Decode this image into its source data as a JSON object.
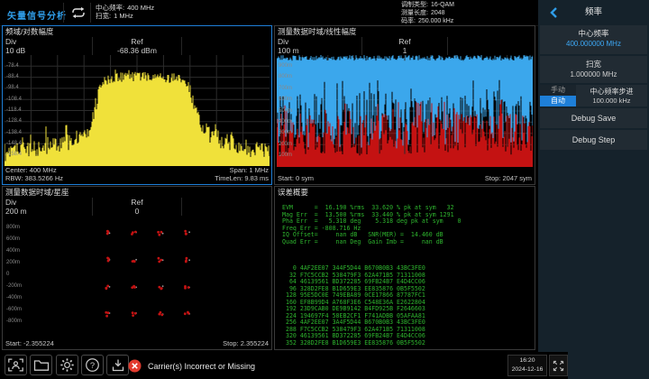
{
  "colors": {
    "accent_blue": "#2f9de8",
    "active_panel_border": "#1e7fd8",
    "trace_yellow": "#f0e13a",
    "trace_blue": "#3ba7ec",
    "trace_red": "#c41212",
    "text_green": "#2eb52e",
    "alert_red": "#e23b2e"
  },
  "top_bar": {
    "app_title": "矢量信号分析",
    "sweep_icon": "repeat-sweep-icon",
    "center_freq_label": "中心频率:",
    "center_freq_value": "400 MHz",
    "span_label": "扫宽:",
    "span_value": "1 MHz",
    "mod_type_label": "调制类型:",
    "mod_type_value": "16-QAM",
    "meas_len_label": "测量长度:",
    "meas_len_value": "2048",
    "symbol_rate_label": "码率:",
    "symbol_rate_value": "250.000 kHz"
  },
  "panels": {
    "spectrum": {
      "title": "频域/对数幅度",
      "div_label": "Div",
      "div_value": "10 dB",
      "ref_label": "Ref",
      "ref_value": "-68.36 dBm",
      "y_ticks": [
        "-78.4",
        "-88.4",
        "-98.4",
        "-108.4",
        "-118.4",
        "-128.4",
        "-138.4",
        "-148.4",
        "-158.4"
      ],
      "center": "Center: 400 MHz",
      "span": "Span: 1 MHz",
      "rbw": "RBW: 383.5266 Hz",
      "timelen": "TimeLen: 9.83 ms"
    },
    "magnitude": {
      "title": "测量数据时域/线性幅度",
      "div_label": "Div",
      "div_value": "100 m",
      "ref_label": "Ref",
      "ref_value": "1",
      "y_ticks": [
        "900m",
        "800m",
        "700m",
        "600m",
        "500m",
        "400m",
        "300m",
        "200m",
        "100m"
      ],
      "start": "Start: 0 sym",
      "stop": "Stop: 2047 sym"
    },
    "constellation": {
      "title": "测量数据时域/星座",
      "div_label": "Div",
      "div_value": "200 m",
      "ref_label": "Ref",
      "ref_value": "0",
      "y_ticks": [
        "800m",
        "600m",
        "400m",
        "200m",
        "0",
        "-200m",
        "-400m",
        "-600m",
        "-800m"
      ],
      "start": "Start: -2.355224",
      "stop": "Stop: 2.355224"
    },
    "error_summary": {
      "title": "误差概要",
      "metrics": [
        "EVM      =  16.190 %rms  33.620 % pk at sym   32",
        "Mag Err  =  13.500 %rms  33.440 % pk at sym 1291",
        "Pha Err  =   5.318 deg    5.318 deg pk at sym    0",
        "Freq Err = -808.716 Hz",
        "IQ Offset=     nan dB   SNR(MER) =  14.460 dB",
        "Quad Err =     nan Deg  Gain Imb =     nan dB"
      ],
      "hex_dump": [
        "   0 4AF2EE07 344F5D44 B670B0B3 43BC3FE0",
        "  32 F7C5CCB2 538479F3 62A471B5 71311008",
        "  64 46139561 BD372285 69FB24B7 E4D4CC06",
        "  96 328D2FE8 B1D659E3 EE835876 0B5F5502",
        " 128 95E5DC0E 749EBA89 0CE17866 87787FC1",
        " 160 EF8B99D4 A768F3E6 C548E36A E2622804",
        " 192 23D9CAB0 DE9B9142 B4FD925B F2646603",
        " 224 194697F4 58EB2CF1 F741ADBB 05AFAA81",
        " 256 4AF2EE07 3A4F5D44 B670B0B3 43BC3FE0",
        " 288 F7C5CCB2 538479F3 62A471B5 71311008",
        " 320 46139561 BD372285 69FB24B7 E4D4CC06",
        " 352 328D2FE8 B1D659E3 EE835876 0B5F5502"
      ]
    }
  },
  "sidebar": {
    "back_icon": "chevron-left-icon",
    "title": "频率",
    "center_freq": {
      "label": "中心频率",
      "value": "400.000000 MHz"
    },
    "span": {
      "label": "扫宽",
      "value": "1.000000 MHz"
    },
    "manual_label": "手动",
    "auto_label": "自动",
    "step": {
      "label": "中心频率步进",
      "value": "100.000 kHz"
    },
    "debug_save": "Debug Save",
    "debug_step": "Debug Step"
  },
  "bottom_bar": {
    "icons": [
      "screenshot-icon",
      "folder-icon",
      "settings-gear-icon",
      "help-icon",
      "save-icon"
    ],
    "alert_text": "Carrier(s) Incorrect or Missing",
    "time": "16:20",
    "date": "2024-12-16",
    "expand_icon": "expand-arrows-icon"
  }
}
